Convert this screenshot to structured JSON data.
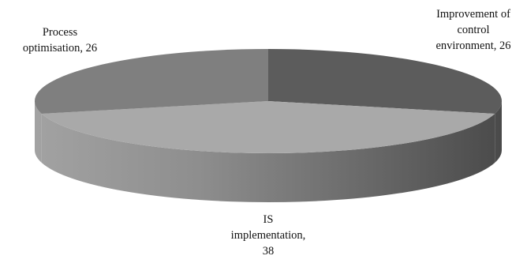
{
  "chart_data": {
    "type": "pie",
    "style": "3d",
    "title": "",
    "slices": [
      {
        "label_lines": [
          "Improvement of",
          "control",
          "environment,  26"
        ],
        "name": "Improvement of control environment",
        "value": 26,
        "color": "#5c5c5c"
      },
      {
        "label_lines": [
          "IS",
          "implementation,",
          "38"
        ],
        "name": "IS implementation",
        "value": 38,
        "color": "#a9a9a9"
      },
      {
        "label_lines": [
          "Process",
          "optimisation, 26"
        ],
        "name": "Process optimisation",
        "value": 26,
        "color": "#7f7f7f"
      }
    ],
    "legend": "none"
  }
}
